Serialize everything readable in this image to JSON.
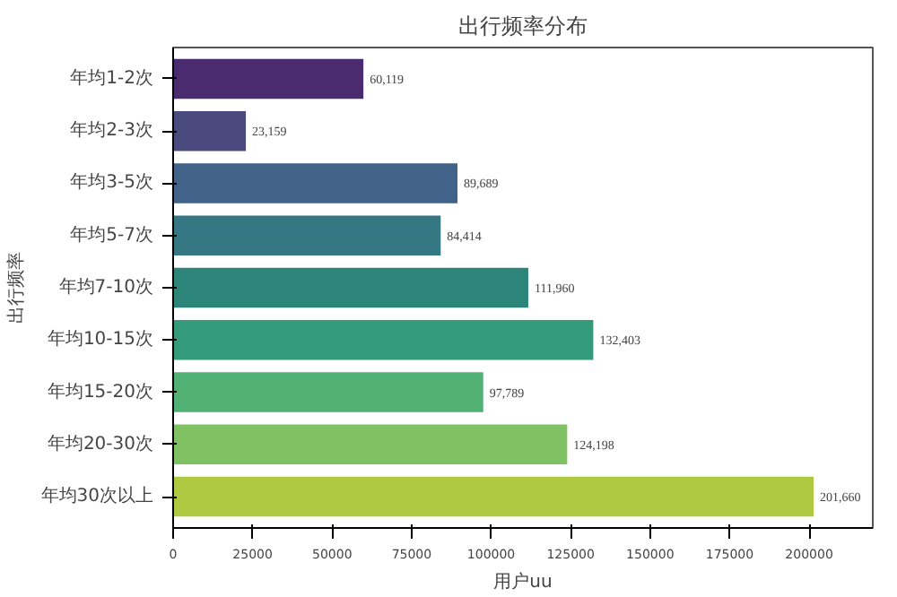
{
  "chart_data": {
    "type": "bar",
    "orientation": "horizontal",
    "title": "出行频率分布",
    "xlabel": "用户uu",
    "ylabel": "出行频率",
    "categories": [
      "年均1-2次",
      "年均2-3次",
      "年均3-5次",
      "年均5-7次",
      "年均7-10次",
      "年均10-15次",
      "年均15-20次",
      "年均20-30次",
      "年均30次以上"
    ],
    "values": [
      60119,
      23159,
      89689,
      84414,
      111960,
      132403,
      97789,
      124198,
      201660
    ],
    "colors": [
      "#4b2b6f",
      "#4b4a7e",
      "#416289",
      "#367784",
      "#2d857a",
      "#339a7a",
      "#51b074",
      "#80c164",
      "#b0c83f"
    ],
    "value_labels": [
      "60,119",
      "23,159",
      "89,689",
      "84,414",
      "111,960",
      "132,403",
      "97,789",
      "124,198",
      "201,660"
    ],
    "xlim": [
      0,
      220000
    ],
    "xticks": [
      0,
      25000,
      50000,
      75000,
      100000,
      125000,
      150000,
      175000,
      200000
    ],
    "grid": false
  }
}
